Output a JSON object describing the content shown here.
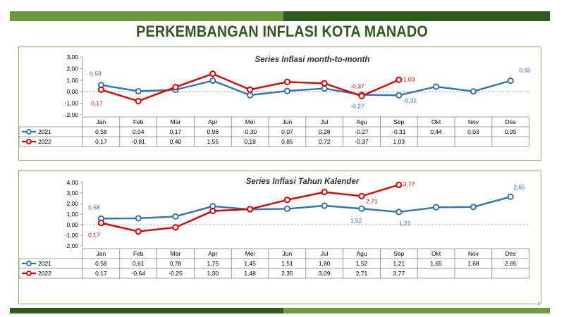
{
  "page": {
    "title": "PERKEMBANGAN INFLASI KOTA MANADO",
    "page_number": "3"
  },
  "colors": {
    "series_2021": "#2e75b6",
    "series_2022": "#e00000",
    "accent_dark": "#2f5a1e",
    "accent_light": "#6f9a3c"
  },
  "chart_data": [
    {
      "type": "line",
      "title": "Series Inflasi month-to-month",
      "categories": [
        "Jan",
        "Feb",
        "Mar",
        "Apr",
        "Mei",
        "Jun",
        "Jul",
        "Agu",
        "Sep",
        "Okt",
        "Nov",
        "Des"
      ],
      "series": [
        {
          "name": "2021",
          "values": [
            0.58,
            0.04,
            0.17,
            0.96,
            -0.3,
            0.07,
            0.28,
            -0.27,
            -0.31,
            0.44,
            0.03,
            0.95
          ],
          "labels": [
            "0,58",
            "0,04",
            "0,17",
            "0,96",
            "-0,30",
            "0,07",
            "0,28",
            "-0,27",
            "-0,31",
            "0,44",
            "0,03",
            "0,95"
          ]
        },
        {
          "name": "2022",
          "values": [
            0.17,
            -0.81,
            0.4,
            1.55,
            0.18,
            0.85,
            0.72,
            -0.37,
            1.03,
            null,
            null,
            null
          ],
          "labels": [
            "0,17",
            "-0,81",
            "0,40",
            "1,55",
            "0,18",
            "0,85",
            "0,72",
            "-0,37",
            "1,03",
            "",
            "",
            ""
          ]
        }
      ],
      "ylim": [
        -2,
        3
      ],
      "yticks": [
        3,
        2,
        1,
        0,
        -1,
        -2
      ],
      "ytick_labels": [
        "3,00",
        "2,00",
        "1,00",
        "0,00",
        "-1,00",
        "-2,00"
      ],
      "annotations": [
        {
          "series": 0,
          "index": 0,
          "text": "0,58"
        },
        {
          "series": 1,
          "index": 0,
          "text": "0,17"
        },
        {
          "series": 1,
          "index": 7,
          "text": "-0,37"
        },
        {
          "series": 0,
          "index": 7,
          "text": "-0,27"
        },
        {
          "series": 1,
          "index": 8,
          "text": "1,03"
        },
        {
          "series": 0,
          "index": 8,
          "text": "-0,31"
        },
        {
          "series": 0,
          "index": 11,
          "text": "0,95"
        }
      ],
      "legend": "data-table"
    },
    {
      "type": "line",
      "title": "Series Inflasi Tahun Kalender",
      "categories": [
        "Jan",
        "Feb",
        "Mar",
        "Apr",
        "Mei",
        "Jun",
        "Jul",
        "Agu",
        "Sep",
        "Okt",
        "Nov",
        "Des"
      ],
      "series": [
        {
          "name": "2021",
          "values": [
            0.58,
            0.61,
            0.78,
            1.75,
            1.45,
            1.51,
            1.8,
            1.52,
            1.21,
            1.65,
            1.68,
            2.65
          ],
          "labels": [
            "0,58",
            "0,61",
            "0,78",
            "1,75",
            "1,45",
            "1,51",
            "1,80",
            "1,52",
            "1,21",
            "1,65",
            "1,68",
            "2,65"
          ]
        },
        {
          "name": "2022",
          "values": [
            0.17,
            -0.64,
            -0.25,
            1.3,
            1.48,
            2.35,
            3.09,
            2.71,
            3.77,
            null,
            null,
            null
          ],
          "labels": [
            "0,17",
            "-0,64",
            "-0,25",
            "1,30",
            "1,48",
            "2,35",
            "3,09",
            "2,71",
            "3,77",
            "",
            "",
            ""
          ]
        }
      ],
      "ylim": [
        -2,
        4
      ],
      "yticks": [
        4,
        3,
        2,
        1,
        0,
        -1,
        -2
      ],
      "ytick_labels": [
        "4,00",
        "3,00",
        "2,00",
        "1,00",
        "0,00",
        "-1,00",
        "-2,00"
      ],
      "annotations": [
        {
          "series": 0,
          "index": 0,
          "text": "0,58"
        },
        {
          "series": 1,
          "index": 0,
          "text": "0,17"
        },
        {
          "series": 1,
          "index": 7,
          "text": "2,71"
        },
        {
          "series": 0,
          "index": 7,
          "text": "1,52"
        },
        {
          "series": 0,
          "index": 8,
          "text": "1,21"
        },
        {
          "series": 1,
          "index": 8,
          "text": "3,77"
        },
        {
          "series": 0,
          "index": 11,
          "text": "2,65"
        }
      ],
      "legend": "data-table"
    }
  ]
}
